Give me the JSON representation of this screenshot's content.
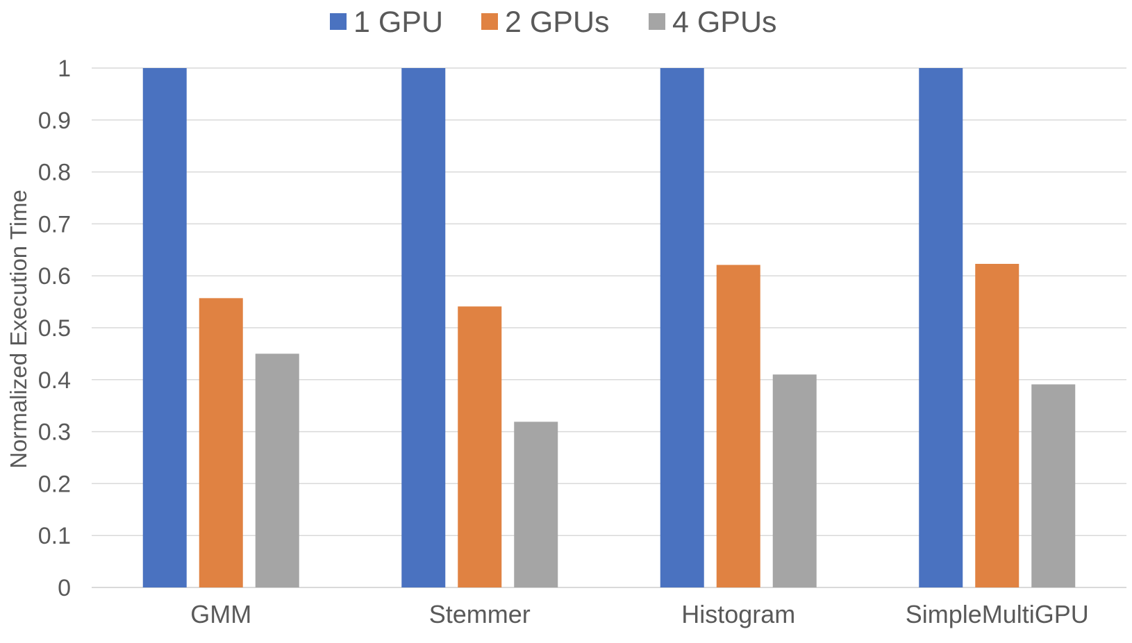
{
  "chart_data": {
    "type": "bar",
    "title": "",
    "xlabel": "",
    "ylabel": "Normalized Execution Time",
    "ylim": [
      0,
      1
    ],
    "yticks": [
      "0",
      "0.1",
      "0.2",
      "0.3",
      "0.4",
      "0.5",
      "0.6",
      "0.7",
      "0.8",
      "0.9",
      "1"
    ],
    "categories": [
      "GMM",
      "Stemmer",
      "Histogram",
      "SimpleMultiGPU"
    ],
    "series": [
      {
        "name": "1 GPU",
        "color": "#4a72c0",
        "values": [
          1.0,
          1.0,
          1.0,
          1.0
        ]
      },
      {
        "name": "2 GPUs",
        "color": "#e08242",
        "values": [
          0.557,
          0.541,
          0.621,
          0.623
        ]
      },
      {
        "name": "4 GPUs",
        "color": "#a5a5a5",
        "values": [
          0.45,
          0.319,
          0.41,
          0.391
        ]
      }
    ],
    "grid": true,
    "legend_position": "top-center"
  }
}
